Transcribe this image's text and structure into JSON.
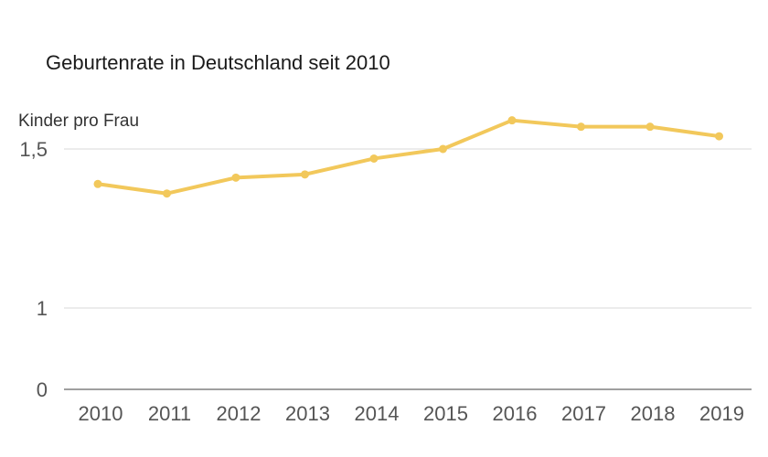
{
  "chart_data": {
    "type": "line",
    "title": "Geburtenrate in Deutschland seit 2010",
    "ylabel": "Kinder pro Frau",
    "xlabel": "",
    "categories": [
      "2010",
      "2011",
      "2012",
      "2013",
      "2014",
      "2015",
      "2016",
      "2017",
      "2018",
      "2019"
    ],
    "series": [
      {
        "values": [
          1.39,
          1.36,
          1.41,
          1.42,
          1.47,
          1.5,
          1.59,
          1.57,
          1.57,
          1.54
        ]
      }
    ],
    "y_ticks": [
      {
        "value": 0,
        "label": "0"
      },
      {
        "value": 1,
        "label": "1"
      },
      {
        "value": 1.5,
        "label": "1,5"
      }
    ],
    "y_scale": "broken",
    "grid": true,
    "legend": "none",
    "colors": {
      "series": "#f2c85b",
      "grid": "#d9d9d9",
      "axis": "#666666"
    }
  }
}
